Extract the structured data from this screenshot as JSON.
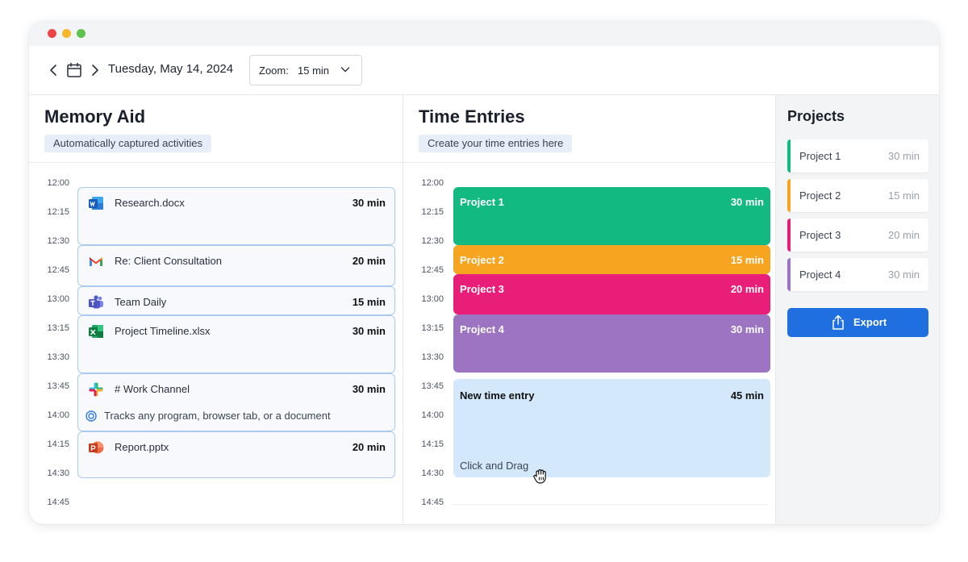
{
  "toolbar": {
    "date": "Tuesday, May 14, 2024",
    "zoom_label": "Zoom:",
    "zoom_value": "15 min"
  },
  "memory": {
    "title": "Memory Aid",
    "subtitle": "Automatically captured activities",
    "activities": [
      {
        "label": "Research.docx",
        "duration": "30 min",
        "icon": "word-icon"
      },
      {
        "label": "Re: Client Consultation",
        "duration": "20 min",
        "icon": "gmail-icon"
      },
      {
        "label": "Team Daily",
        "duration": "15 min",
        "icon": "teams-icon"
      },
      {
        "label": "Project Timeline.xlsx",
        "duration": "30 min",
        "icon": "excel-icon"
      },
      {
        "label": "# Work Channel",
        "duration": "30 min",
        "icon": "slack-icon"
      },
      {
        "label": "Report.pptx",
        "duration": "20 min",
        "icon": "powerpoint-icon"
      }
    ],
    "tracks_note": "Tracks any program, browser tab, or a document"
  },
  "times": [
    "12:00",
    "12:15",
    "12:30",
    "12:45",
    "13:00",
    "13:15",
    "13:30",
    "13:45",
    "14:00",
    "14:15",
    "14:30",
    "14:45"
  ],
  "entries": {
    "title": "Time Entries",
    "subtitle": "Create your time entries here",
    "items": [
      {
        "label": "Project 1",
        "duration": "30 min",
        "color": "#12b981"
      },
      {
        "label": "Project 2",
        "duration": "15 min",
        "color": "#f7a420"
      },
      {
        "label": "Project 3",
        "duration": "20 min",
        "color": "#e91e78"
      },
      {
        "label": "Project 4",
        "duration": "30 min",
        "color": "#9d74c1"
      }
    ],
    "new_entry": {
      "label": "New time entry",
      "duration": "45 min",
      "hint": "Click and Drag",
      "color": "#d3e9fb"
    }
  },
  "projects": {
    "title": "Projects",
    "items": [
      {
        "name": "Project 1",
        "duration": "30 min",
        "color": "#12b981"
      },
      {
        "name": "Project 2",
        "duration": "15 min",
        "color": "#f7a420"
      },
      {
        "name": "Project 3",
        "duration": "20 min",
        "color": "#e91e78"
      },
      {
        "name": "Project 4",
        "duration": "30 min",
        "color": "#9d74c1"
      }
    ],
    "export_label": "Export"
  }
}
